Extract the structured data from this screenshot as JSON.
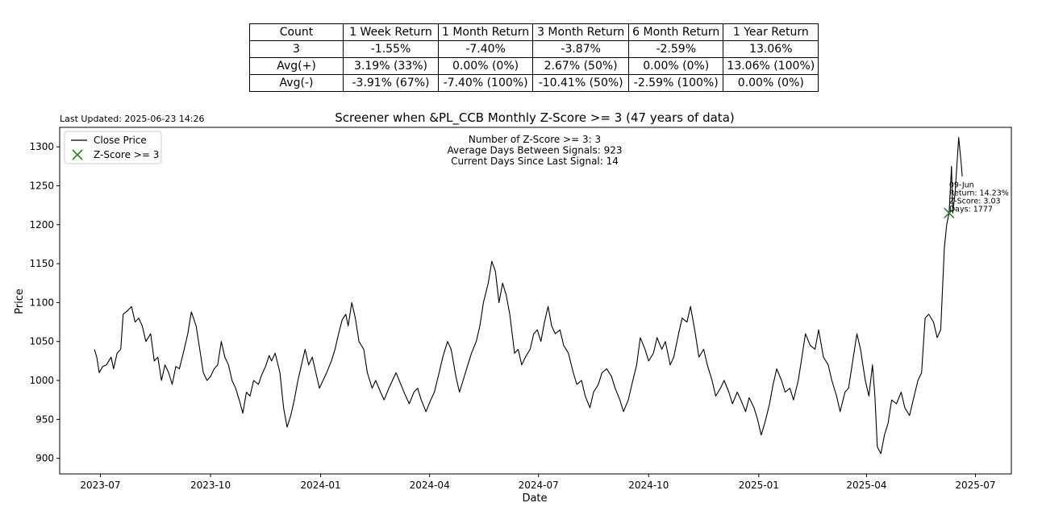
{
  "stats_table": {
    "header": [
      "Count",
      "1 Week Return",
      "1 Month Return",
      "3 Month Return",
      "6 Month Return",
      "1 Year Return"
    ],
    "rows": [
      [
        "3",
        "-1.55%",
        "-7.40%",
        "-3.87%",
        "-2.59%",
        "13.06%"
      ],
      [
        "Avg(+)",
        "3.19% (33%)",
        "0.00% (0%)",
        "2.67% (50%)",
        "0.00% (0%)",
        "13.06% (100%)"
      ],
      [
        "Avg(-)",
        "-3.91% (67%)",
        "-7.40% (100%)",
        "-10.41% (50%)",
        "-2.59% (100%)",
        "0.00% (0%)"
      ]
    ]
  },
  "last_updated": "Last Updated: 2025-06-23 14:26",
  "info_lines": [
    "Number of Z-Score >= 3: 3",
    "Average Days Between Signals: 923",
    "Current Days Since Last Signal: 14"
  ],
  "signal_annotation": [
    "09-Jun",
    "Return: 14.23%",
    "Z-Score: 3.03",
    "Days: 1777"
  ],
  "chart_data": {
    "type": "line",
    "title": "Screener when &PL_CCB Monthly Z-Score >= 3 (47 years of data)",
    "xlabel": "Date",
    "ylabel": "Price",
    "ylim": [
      880,
      1325
    ],
    "xlim": [
      "2023-05-28",
      "2025-07-31"
    ],
    "yticks": [
      900,
      950,
      1000,
      1050,
      1100,
      1150,
      1200,
      1250,
      1300
    ],
    "xticks": [
      {
        "date": "2023-07-01",
        "label": "2023-07"
      },
      {
        "date": "2023-10-01",
        "label": "2023-10"
      },
      {
        "date": "2024-01-01",
        "label": "2024-01"
      },
      {
        "date": "2024-04-01",
        "label": "2024-04"
      },
      {
        "date": "2024-07-01",
        "label": "2024-07"
      },
      {
        "date": "2024-10-01",
        "label": "2024-10"
      },
      {
        "date": "2025-01-01",
        "label": "2025-01"
      },
      {
        "date": "2025-04-01",
        "label": "2025-04"
      },
      {
        "date": "2025-07-01",
        "label": "2025-07"
      }
    ],
    "legend": {
      "position": "top-left",
      "entries": [
        "Close Price",
        "Z-Score >= 3"
      ]
    },
    "series": [
      {
        "name": "Close Price",
        "color": "#000000",
        "points": [
          [
            "2023-06-26",
            1040
          ],
          [
            "2023-06-28",
            1030
          ],
          [
            "2023-06-30",
            1010
          ],
          [
            "2023-07-03",
            1018
          ],
          [
            "2023-07-06",
            1020
          ],
          [
            "2023-07-10",
            1030
          ],
          [
            "2023-07-12",
            1015
          ],
          [
            "2023-07-15",
            1035
          ],
          [
            "2023-07-18",
            1040
          ],
          [
            "2023-07-20",
            1085
          ],
          [
            "2023-07-24",
            1090
          ],
          [
            "2023-07-27",
            1095
          ],
          [
            "2023-07-30",
            1075
          ],
          [
            "2023-08-02",
            1080
          ],
          [
            "2023-08-05",
            1070
          ],
          [
            "2023-08-08",
            1050
          ],
          [
            "2023-08-12",
            1060
          ],
          [
            "2023-08-15",
            1025
          ],
          [
            "2023-08-18",
            1030
          ],
          [
            "2023-08-21",
            1000
          ],
          [
            "2023-08-24",
            1020
          ],
          [
            "2023-08-27",
            1010
          ],
          [
            "2023-08-30",
            995
          ],
          [
            "2023-09-02",
            1018
          ],
          [
            "2023-09-05",
            1015
          ],
          [
            "2023-09-09",
            1040
          ],
          [
            "2023-09-12",
            1060
          ],
          [
            "2023-09-15",
            1088
          ],
          [
            "2023-09-19",
            1070
          ],
          [
            "2023-09-22",
            1040
          ],
          [
            "2023-09-25",
            1010
          ],
          [
            "2023-09-28",
            1000
          ],
          [
            "2023-10-01",
            1005
          ],
          [
            "2023-10-04",
            1015
          ],
          [
            "2023-10-07",
            1020
          ],
          [
            "2023-10-10",
            1050
          ],
          [
            "2023-10-13",
            1030
          ],
          [
            "2023-10-16",
            1020
          ],
          [
            "2023-10-19",
            1000
          ],
          [
            "2023-10-22",
            990
          ],
          [
            "2023-10-25",
            975
          ],
          [
            "2023-10-28",
            958
          ],
          [
            "2023-10-31",
            985
          ],
          [
            "2023-11-03",
            980
          ],
          [
            "2023-11-06",
            1000
          ],
          [
            "2023-11-10",
            995
          ],
          [
            "2023-11-13",
            1008
          ],
          [
            "2023-11-16",
            1018
          ],
          [
            "2023-11-19",
            1032
          ],
          [
            "2023-11-21",
            1025
          ],
          [
            "2023-11-24",
            1035
          ],
          [
            "2023-11-28",
            1010
          ],
          [
            "2023-12-01",
            965
          ],
          [
            "2023-12-04",
            940
          ],
          [
            "2023-12-07",
            955
          ],
          [
            "2023-12-10",
            975
          ],
          [
            "2023-12-13",
            1000
          ],
          [
            "2023-12-16",
            1020
          ],
          [
            "2023-12-19",
            1040
          ],
          [
            "2023-12-22",
            1020
          ],
          [
            "2023-12-25",
            1030
          ],
          [
            "2023-12-28",
            1010
          ],
          [
            "2023-12-31",
            990
          ],
          [
            "2024-01-03",
            1000
          ],
          [
            "2024-01-06",
            1010
          ],
          [
            "2024-01-10",
            1025
          ],
          [
            "2024-01-13",
            1040
          ],
          [
            "2024-01-16",
            1060
          ],
          [
            "2024-01-19",
            1078
          ],
          [
            "2024-01-22",
            1085
          ],
          [
            "2024-01-24",
            1070
          ],
          [
            "2024-01-27",
            1100
          ],
          [
            "2024-01-30",
            1080
          ],
          [
            "2024-02-02",
            1050
          ],
          [
            "2024-02-06",
            1040
          ],
          [
            "2024-02-09",
            1010
          ],
          [
            "2024-02-13",
            990
          ],
          [
            "2024-02-16",
            1000
          ],
          [
            "2024-02-20",
            985
          ],
          [
            "2024-02-23",
            975
          ],
          [
            "2024-02-27",
            990
          ],
          [
            "2024-03-01",
            1000
          ],
          [
            "2024-03-04",
            1010
          ],
          [
            "2024-03-08",
            995
          ],
          [
            "2024-03-12",
            980
          ],
          [
            "2024-03-15",
            970
          ],
          [
            "2024-03-19",
            985
          ],
          [
            "2024-03-22",
            990
          ],
          [
            "2024-03-25",
            975
          ],
          [
            "2024-03-29",
            960
          ],
          [
            "2024-04-02",
            975
          ],
          [
            "2024-04-05",
            985
          ],
          [
            "2024-04-09",
            1010
          ],
          [
            "2024-04-12",
            1030
          ],
          [
            "2024-04-16",
            1050
          ],
          [
            "2024-04-19",
            1040
          ],
          [
            "2024-04-23",
            1005
          ],
          [
            "2024-04-26",
            985
          ],
          [
            "2024-04-29",
            1000
          ],
          [
            "2024-05-03",
            1020
          ],
          [
            "2024-05-06",
            1035
          ],
          [
            "2024-05-10",
            1050
          ],
          [
            "2024-05-13",
            1070
          ],
          [
            "2024-05-16",
            1100
          ],
          [
            "2024-05-20",
            1125
          ],
          [
            "2024-05-23",
            1153
          ],
          [
            "2024-05-26",
            1140
          ],
          [
            "2024-05-29",
            1100
          ],
          [
            "2024-06-01",
            1125
          ],
          [
            "2024-06-04",
            1110
          ],
          [
            "2024-06-07",
            1085
          ],
          [
            "2024-06-11",
            1035
          ],
          [
            "2024-06-14",
            1040
          ],
          [
            "2024-06-17",
            1020
          ],
          [
            "2024-06-20",
            1030
          ],
          [
            "2024-06-24",
            1040
          ],
          [
            "2024-06-27",
            1060
          ],
          [
            "2024-06-30",
            1065
          ],
          [
            "2024-07-03",
            1050
          ],
          [
            "2024-07-06",
            1075
          ],
          [
            "2024-07-09",
            1095
          ],
          [
            "2024-07-12",
            1070
          ],
          [
            "2024-07-15",
            1060
          ],
          [
            "2024-07-19",
            1065
          ],
          [
            "2024-07-22",
            1045
          ],
          [
            "2024-07-26",
            1035
          ],
          [
            "2024-07-30",
            1010
          ],
          [
            "2024-08-02",
            995
          ],
          [
            "2024-08-06",
            1000
          ],
          [
            "2024-08-09",
            980
          ],
          [
            "2024-08-13",
            965
          ],
          [
            "2024-08-16",
            985
          ],
          [
            "2024-08-20",
            995
          ],
          [
            "2024-08-23",
            1010
          ],
          [
            "2024-08-27",
            1015
          ],
          [
            "2024-08-31",
            1005
          ],
          [
            "2024-09-03",
            990
          ],
          [
            "2024-09-07",
            975
          ],
          [
            "2024-09-10",
            960
          ],
          [
            "2024-09-14",
            975
          ],
          [
            "2024-09-17",
            995
          ],
          [
            "2024-09-21",
            1020
          ],
          [
            "2024-09-24",
            1055
          ],
          [
            "2024-09-28",
            1040
          ],
          [
            "2024-10-01",
            1025
          ],
          [
            "2024-10-05",
            1035
          ],
          [
            "2024-10-08",
            1055
          ],
          [
            "2024-10-12",
            1040
          ],
          [
            "2024-10-15",
            1050
          ],
          [
            "2024-10-19",
            1020
          ],
          [
            "2024-10-22",
            1030
          ],
          [
            "2024-10-26",
            1060
          ],
          [
            "2024-10-29",
            1080
          ],
          [
            "2024-11-02",
            1075
          ],
          [
            "2024-11-05",
            1095
          ],
          [
            "2024-11-09",
            1060
          ],
          [
            "2024-11-12",
            1030
          ],
          [
            "2024-11-16",
            1040
          ],
          [
            "2024-11-19",
            1020
          ],
          [
            "2024-11-23",
            1000
          ],
          [
            "2024-11-26",
            980
          ],
          [
            "2024-11-30",
            990
          ],
          [
            "2024-12-03",
            1000
          ],
          [
            "2024-12-07",
            985
          ],
          [
            "2024-12-10",
            970
          ],
          [
            "2024-12-14",
            985
          ],
          [
            "2024-12-17",
            975
          ],
          [
            "2024-12-21",
            960
          ],
          [
            "2024-12-24",
            978
          ],
          [
            "2024-12-28",
            965
          ],
          [
            "2024-12-31",
            950
          ],
          [
            "2025-01-03",
            930
          ],
          [
            "2025-01-06",
            945
          ],
          [
            "2025-01-10",
            970
          ],
          [
            "2025-01-13",
            995
          ],
          [
            "2025-01-16",
            1015
          ],
          [
            "2025-01-20",
            1000
          ],
          [
            "2025-01-23",
            985
          ],
          [
            "2025-01-27",
            990
          ],
          [
            "2025-01-30",
            975
          ],
          [
            "2025-02-03",
            1000
          ],
          [
            "2025-02-06",
            1030
          ],
          [
            "2025-02-09",
            1060
          ],
          [
            "2025-02-13",
            1045
          ],
          [
            "2025-02-17",
            1040
          ],
          [
            "2025-02-20",
            1065
          ],
          [
            "2025-02-24",
            1030
          ],
          [
            "2025-02-28",
            1020
          ],
          [
            "2025-03-03",
            1000
          ],
          [
            "2025-03-07",
            980
          ],
          [
            "2025-03-10",
            960
          ],
          [
            "2025-03-14",
            985
          ],
          [
            "2025-03-17",
            990
          ],
          [
            "2025-03-20",
            1020
          ],
          [
            "2025-03-24",
            1060
          ],
          [
            "2025-03-27",
            1040
          ],
          [
            "2025-03-31",
            1000
          ],
          [
            "2025-04-03",
            980
          ],
          [
            "2025-04-06",
            1020
          ],
          [
            "2025-04-08",
            980
          ],
          [
            "2025-04-10",
            915
          ],
          [
            "2025-04-13",
            906
          ],
          [
            "2025-04-16",
            930
          ],
          [
            "2025-04-19",
            945
          ],
          [
            "2025-04-22",
            975
          ],
          [
            "2025-04-26",
            970
          ],
          [
            "2025-04-30",
            985
          ],
          [
            "2025-05-03",
            965
          ],
          [
            "2025-05-07",
            955
          ],
          [
            "2025-05-10",
            975
          ],
          [
            "2025-05-14",
            1000
          ],
          [
            "2025-05-17",
            1010
          ],
          [
            "2025-05-20",
            1080
          ],
          [
            "2025-05-23",
            1085
          ],
          [
            "2025-05-27",
            1075
          ],
          [
            "2025-05-30",
            1055
          ],
          [
            "2025-06-02",
            1065
          ],
          [
            "2025-06-05",
            1170
          ],
          [
            "2025-06-07",
            1200
          ],
          [
            "2025-06-09",
            1215
          ],
          [
            "2025-06-11",
            1275
          ],
          [
            "2025-06-12",
            1215
          ],
          [
            "2025-06-14",
            1240
          ],
          [
            "2025-06-17",
            1312
          ],
          [
            "2025-06-19",
            1280
          ],
          [
            "2025-06-20",
            1262
          ]
        ]
      },
      {
        "name": "Z-Score >= 3",
        "color": "#2e7d32",
        "marker": "x",
        "points": [
          [
            "2025-06-09",
            1215
          ]
        ]
      }
    ]
  }
}
